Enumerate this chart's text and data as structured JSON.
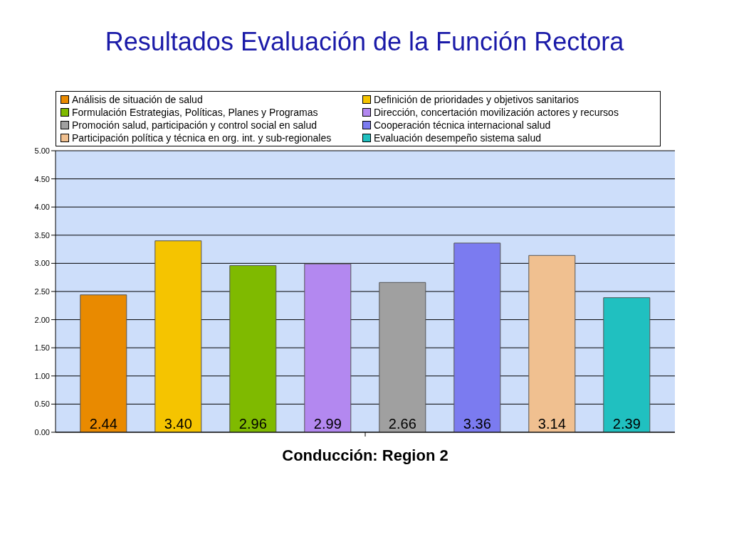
{
  "chart_data": {
    "type": "bar",
    "title": "Resultados Evaluación de la Función Rectora",
    "xlabel": "Conducción: Region 2",
    "categories": [
      null
    ],
    "series": [
      {
        "name": "Análisis de situación de salud",
        "color": "#e98a00",
        "values": [
          2.44
        ],
        "value_labels": [
          "2.44"
        ]
      },
      {
        "name": "Definición de prioridades y objetivos sanitarios",
        "color": "#f5c400",
        "values": [
          3.4
        ],
        "value_labels": [
          "3.40"
        ]
      },
      {
        "name": "Formulación Estrategias, Políticas, Planes y Programas",
        "color": "#7fba00",
        "values": [
          2.96
        ],
        "value_labels": [
          "2.96"
        ]
      },
      {
        "name": "Dirección, concertación movilización actores y recursos",
        "color": "#b388f0",
        "values": [
          2.99
        ],
        "value_labels": [
          "2.99"
        ]
      },
      {
        "name": "Promoción salud, participación y control social en salud",
        "color": "#a0a0a0",
        "values": [
          2.66
        ],
        "value_labels": [
          "2.66"
        ]
      },
      {
        "name": "Cooperación técnica internacional salud",
        "color": "#7b7bf0",
        "values": [
          3.36
        ],
        "value_labels": [
          "3.36"
        ]
      },
      {
        "name": "Participación política y técnica en org. int. y sub-regionales",
        "color": "#f0c090",
        "values": [
          3.14
        ],
        "value_labels": [
          "3.14"
        ]
      },
      {
        "name": "Evaluación desempeño sistema salud",
        "color": "#20c0c0",
        "values": [
          2.39
        ],
        "value_labels": [
          "2.39"
        ]
      }
    ],
    "ylim": [
      0,
      5
    ],
    "yticks": [
      {
        "value": 0,
        "label": "0.00"
      },
      {
        "value": 0.5,
        "label": "0.50"
      },
      {
        "value": 1,
        "label": "1.00"
      },
      {
        "value": 1.5,
        "label": "1.50"
      },
      {
        "value": 2,
        "label": "2.00"
      },
      {
        "value": 2.5,
        "label": "2.50"
      },
      {
        "value": 3,
        "label": "3.00"
      },
      {
        "value": 3.5,
        "label": "3.50"
      },
      {
        "value": 4,
        "label": "4.00"
      },
      {
        "value": 4.5,
        "label": "4.50"
      },
      {
        "value": 5,
        "label": "5.00"
      }
    ],
    "grid": "y",
    "legend": "top"
  }
}
